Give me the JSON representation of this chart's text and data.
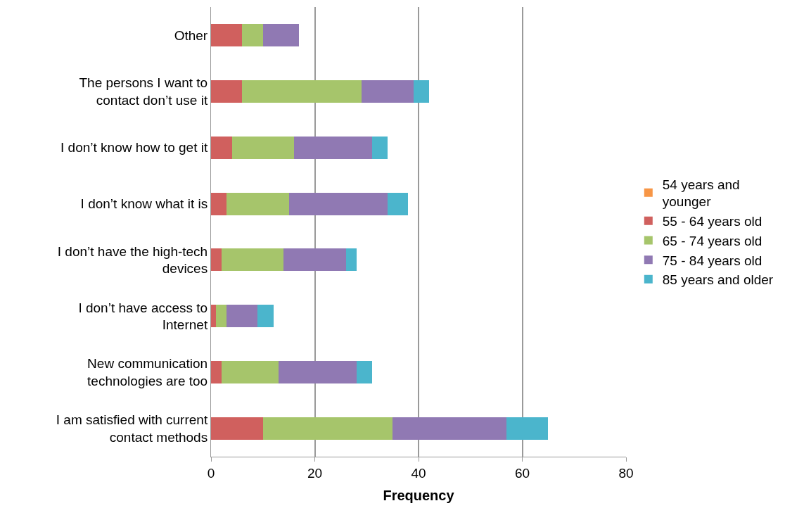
{
  "chart_data": {
    "type": "bar",
    "orientation": "horizontal",
    "stacked": true,
    "xlabel": "Frequency",
    "categories": [
      "Other",
      "The persons I want to\ncontact don’t use it",
      "I don’t know how to get it",
      "I don’t know what it is",
      "I don’t have the high-tech\ndevices",
      "I don’t have access to\nInternet",
      "New communication\ntechnologies are too",
      "I am satisfied with current\ncontact methods"
    ],
    "series": [
      {
        "name": "54 years and\nyounger",
        "color": "#f79646",
        "values": [
          0,
          0,
          0,
          0,
          0,
          0,
          0,
          0
        ]
      },
      {
        "name": "55 - 64 years old",
        "color": "#d0605e",
        "values": [
          6,
          6,
          4,
          3,
          2,
          1,
          2,
          10
        ]
      },
      {
        "name": "65 - 74 years old",
        "color": "#a6c56b",
        "values": [
          4,
          23,
          12,
          12,
          12,
          2,
          11,
          25
        ]
      },
      {
        "name": "75 - 84 years old",
        "color": "#9079b3",
        "values": [
          7,
          10,
          15,
          19,
          12,
          6,
          15,
          22
        ]
      },
      {
        "name": "85 years and older",
        "color": "#4bb5cc",
        "values": [
          0,
          3,
          3,
          4,
          2,
          3,
          3,
          8
        ]
      }
    ],
    "xlim": [
      0,
      80
    ],
    "xticks": [
      0,
      20,
      40,
      60,
      80
    ],
    "grid": "x",
    "legend": "right"
  }
}
